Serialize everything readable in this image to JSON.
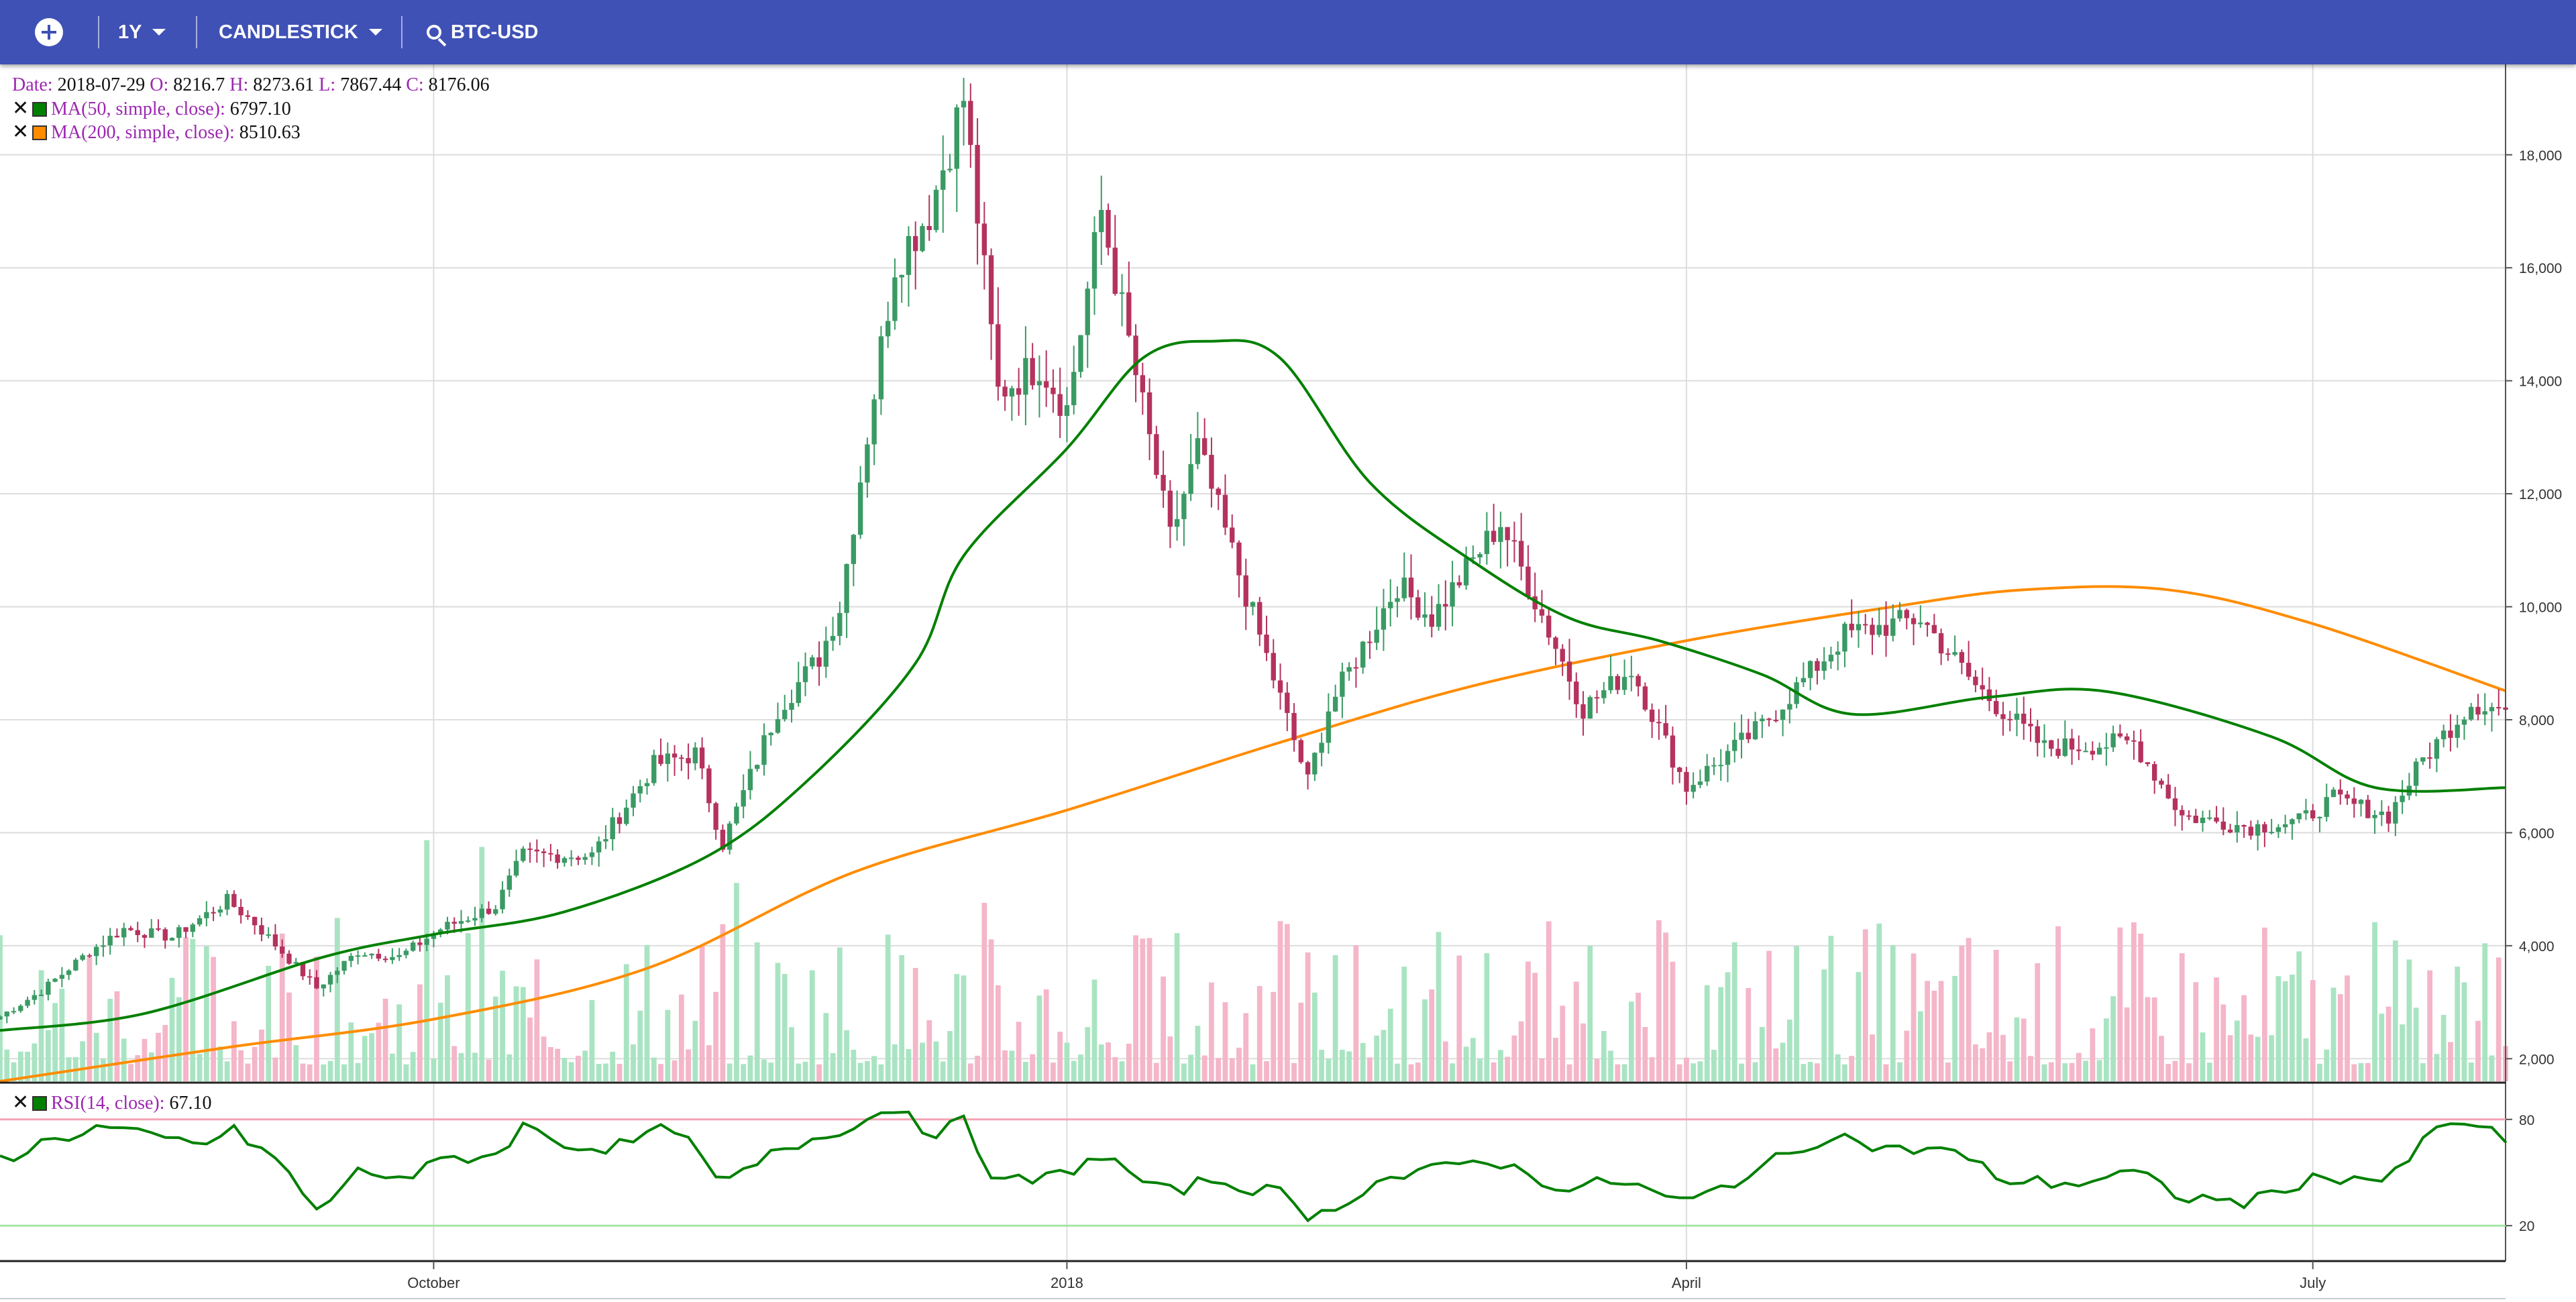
{
  "toolbar": {
    "range_label": "1Y",
    "type_label": "CANDLESTICK",
    "symbol_label": "BTC-USD",
    "icons": [
      "add-icon",
      "chevron-down-icon",
      "search-icon"
    ]
  },
  "legend": {
    "date_label": "Date:",
    "date_value": "2018-07-29",
    "open_label": "O:",
    "open_value": "8216.7",
    "high_label": "H:",
    "high_value": "8273.61",
    "low_label": "L:",
    "low_value": "7867.44",
    "close_label": "C:",
    "close_value": "8176.06",
    "ma50_label": "MA(50, simple, close):",
    "ma50_value": "6797.10",
    "ma50_color": "#008000",
    "ma200_label": "MA(200, simple, close):",
    "ma200_value": "8510.63",
    "ma200_color": "#ff8c00",
    "rsi_label": "RSI(14, close):",
    "rsi_value": "67.10",
    "rsi_color": "#008000"
  },
  "chart_data": [
    {
      "type": "candlestick",
      "symbol": "BTC-USD",
      "ylim": [
        1600,
        19600
      ],
      "y_ticks": [
        2000,
        4000,
        6000,
        8000,
        10000,
        12000,
        14000,
        16000,
        18000
      ],
      "y_tick_labels": [
        "2,000",
        "4,000",
        "6,000",
        "8,000",
        "10,000",
        "12,000",
        "14,000",
        "16,000",
        "18,000"
      ],
      "x_ticks": [
        {
          "date": "2017-10-01",
          "label": "October"
        },
        {
          "date": "2018-01-01",
          "label": "2018"
        },
        {
          "date": "2018-04-01",
          "label": "April"
        },
        {
          "date": "2018-07-01",
          "label": "July"
        }
      ],
      "x_range": [
        "2017-07-30",
        "2018-07-29"
      ],
      "colors": {
        "up": "#3a9a64",
        "down": "#b5325d",
        "vol_up": "#a9e4c2",
        "vol_down": "#f4b6c8",
        "grid": "#dddddd"
      },
      "close_anchors": [
        [
          "2017-07-30",
          2750
        ],
        [
          "2017-08-05",
          3200
        ],
        [
          "2017-08-12",
          3900
        ],
        [
          "2017-08-17",
          4300
        ],
        [
          "2017-08-24",
          4150
        ],
        [
          "2017-09-01",
          4800
        ],
        [
          "2017-09-05",
          4400
        ],
        [
          "2017-09-14",
          3250
        ],
        [
          "2017-09-20",
          3900
        ],
        [
          "2017-09-26",
          3800
        ],
        [
          "2017-10-02",
          4300
        ],
        [
          "2017-10-10",
          4700
        ],
        [
          "2017-10-14",
          5600
        ],
        [
          "2017-10-24",
          5600
        ],
        [
          "2017-11-02",
          7200
        ],
        [
          "2017-11-08",
          7400
        ],
        [
          "2017-11-12",
          5800
        ],
        [
          "2017-11-20",
          8200
        ],
        [
          "2017-11-26",
          9100
        ],
        [
          "2017-11-29",
          10000
        ],
        [
          "2017-12-07",
          16100
        ],
        [
          "2017-12-12",
          17000
        ],
        [
          "2017-12-17",
          19000
        ],
        [
          "2017-12-22",
          13800
        ],
        [
          "2017-12-28",
          14300
        ],
        [
          "2018-01-01",
          13500
        ],
        [
          "2018-01-06",
          17000
        ],
        [
          "2018-01-16",
          11200
        ],
        [
          "2018-01-20",
          12800
        ],
        [
          "2018-02-05",
          6900
        ],
        [
          "2018-02-08",
          8200
        ],
        [
          "2018-02-18",
          10400
        ],
        [
          "2018-02-23",
          9800
        ],
        [
          "2018-03-05",
          11500
        ],
        [
          "2018-03-17",
          8200
        ],
        [
          "2018-03-24",
          8900
        ],
        [
          "2018-04-01",
          6800
        ],
        [
          "2018-04-12",
          7900
        ],
        [
          "2018-04-24",
          9500
        ],
        [
          "2018-05-05",
          9800
        ],
        [
          "2018-05-13",
          8600
        ],
        [
          "2018-05-23",
          7500
        ],
        [
          "2018-06-05",
          7600
        ],
        [
          "2018-06-12",
          6300
        ],
        [
          "2018-06-22",
          6100
        ],
        [
          "2018-06-29",
          6200
        ],
        [
          "2018-07-04",
          6600
        ],
        [
          "2018-07-12",
          6300
        ],
        [
          "2018-07-17",
          7300
        ],
        [
          "2018-07-24",
          8300
        ],
        [
          "2018-07-29",
          8176
        ]
      ],
      "last_candle": {
        "date": "2018-07-29",
        "open": 8216.7,
        "high": 8273.61,
        "low": 7867.44,
        "close": 8176.06
      }
    },
    {
      "type": "line",
      "series": [
        {
          "name": "MA(50, simple, close)",
          "color": "#008000",
          "points": [
            [
              "2017-07-30",
              2500
            ],
            [
              "2017-08-20",
              2800
            ],
            [
              "2017-09-15",
              3800
            ],
            [
              "2017-10-01",
              4200
            ],
            [
              "2017-10-20",
              4600
            ],
            [
              "2017-11-10",
              5600
            ],
            [
              "2017-11-25",
              7000
            ],
            [
              "2017-12-10",
              9000
            ],
            [
              "2017-12-17",
              10900
            ],
            [
              "2018-01-01",
              12800
            ],
            [
              "2018-01-12",
              14400
            ],
            [
              "2018-01-22",
              14700
            ],
            [
              "2018-02-01",
              14400
            ],
            [
              "2018-02-14",
              12200
            ],
            [
              "2018-03-01",
              10800
            ],
            [
              "2018-03-15",
              9800
            ],
            [
              "2018-03-28",
              9400
            ],
            [
              "2018-04-12",
              8800
            ],
            [
              "2018-04-25",
              8100
            ],
            [
              "2018-05-15",
              8400
            ],
            [
              "2018-06-01",
              8500
            ],
            [
              "2018-06-25",
              7700
            ],
            [
              "2018-07-10",
              6800
            ],
            [
              "2018-07-29",
              6797
            ]
          ]
        },
        {
          "name": "MA(200, simple, close)",
          "color": "#ff8c00",
          "points": [
            [
              "2017-07-30",
              1600
            ],
            [
              "2017-09-01",
              2200
            ],
            [
              "2017-10-01",
              2700
            ],
            [
              "2017-11-01",
              3600
            ],
            [
              "2017-12-01",
              5300
            ],
            [
              "2018-01-01",
              6400
            ],
            [
              "2018-02-01",
              7600
            ],
            [
              "2018-03-01",
              8600
            ],
            [
              "2018-04-01",
              9400
            ],
            [
              "2018-05-01",
              10000
            ],
            [
              "2018-05-20",
              10300
            ],
            [
              "2018-06-10",
              10300
            ],
            [
              "2018-07-01",
              9700
            ],
            [
              "2018-07-29",
              8511
            ]
          ]
        }
      ]
    },
    {
      "type": "bar",
      "name": "volume",
      "note_units": "same price-axis units as drawn, bars rise from axis bottom",
      "ylim": [
        1600,
        7500
      ]
    },
    {
      "type": "line",
      "name": "RSI(14, close)",
      "ylim": [
        0,
        100
      ],
      "y_ticks": [
        20,
        80
      ],
      "y_tick_labels": [
        "20",
        "80"
      ],
      "threshold_colors": {
        "80": "#f4a3b5",
        "20": "#a5e6a5"
      },
      "points": [
        [
          "2017-07-30",
          57
        ],
        [
          "2017-08-06",
          68
        ],
        [
          "2017-08-14",
          76
        ],
        [
          "2017-08-20",
          70
        ],
        [
          "2017-08-28",
          66
        ],
        [
          "2017-09-02",
          73
        ],
        [
          "2017-09-08",
          58
        ],
        [
          "2017-09-14",
          28
        ],
        [
          "2017-09-20",
          50
        ],
        [
          "2017-09-28",
          48
        ],
        [
          "2017-10-03",
          58
        ],
        [
          "2017-10-10",
          60
        ],
        [
          "2017-10-14",
          76
        ],
        [
          "2017-10-22",
          64
        ],
        [
          "2017-10-28",
          65
        ],
        [
          "2017-11-05",
          76
        ],
        [
          "2017-11-12",
          42
        ],
        [
          "2017-11-20",
          62
        ],
        [
          "2017-11-28",
          73
        ],
        [
          "2017-12-08",
          88
        ],
        [
          "2017-12-12",
          72
        ],
        [
          "2017-12-17",
          78
        ],
        [
          "2017-12-22",
          44
        ],
        [
          "2017-12-30",
          47
        ],
        [
          "2018-01-06",
          60
        ],
        [
          "2018-01-15",
          38
        ],
        [
          "2018-01-22",
          46
        ],
        [
          "2018-02-01",
          38
        ],
        [
          "2018-02-06",
          24
        ],
        [
          "2018-02-15",
          45
        ],
        [
          "2018-02-22",
          50
        ],
        [
          "2018-03-03",
          58
        ],
        [
          "2018-03-15",
          40
        ],
        [
          "2018-03-22",
          46
        ],
        [
          "2018-04-01",
          32
        ],
        [
          "2018-04-12",
          53
        ],
        [
          "2018-04-22",
          72
        ],
        [
          "2018-05-01",
          62
        ],
        [
          "2018-05-08",
          64
        ],
        [
          "2018-05-18",
          45
        ],
        [
          "2018-05-28",
          44
        ],
        [
          "2018-06-05",
          50
        ],
        [
          "2018-06-12",
          36
        ],
        [
          "2018-06-22",
          33
        ],
        [
          "2018-06-30",
          46
        ],
        [
          "2018-07-08",
          48
        ],
        [
          "2018-07-12",
          44
        ],
        [
          "2018-07-18",
          72
        ],
        [
          "2018-07-24",
          80
        ],
        [
          "2018-07-29",
          67
        ]
      ]
    }
  ]
}
